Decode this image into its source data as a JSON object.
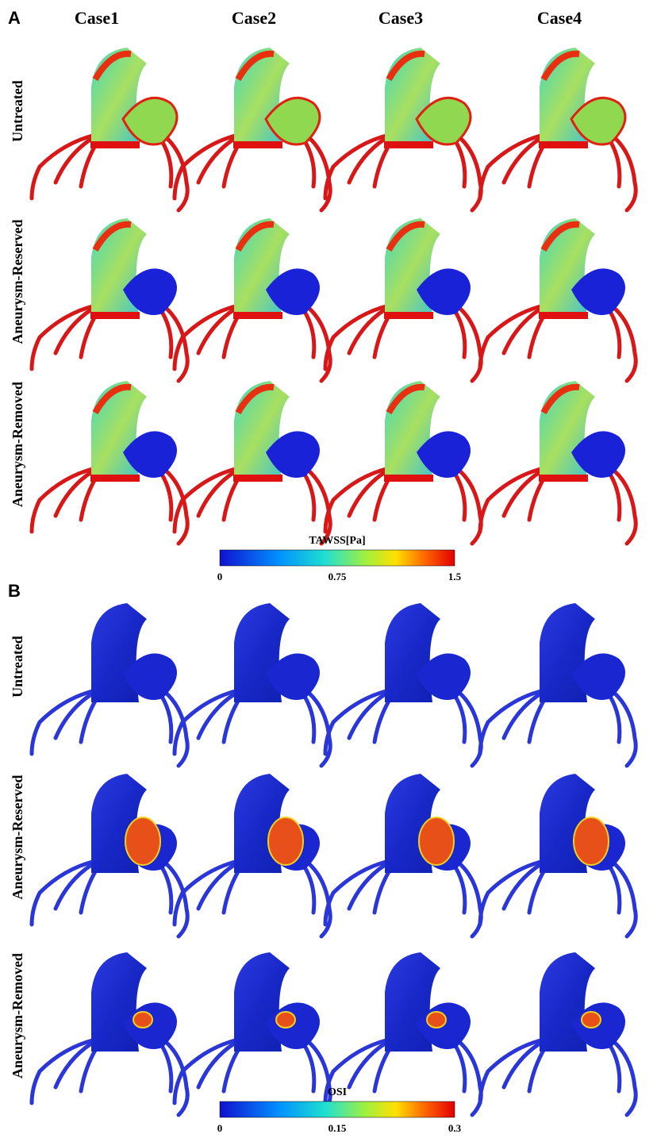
{
  "panels": [
    {
      "label": "A",
      "columns": [
        "Case1",
        "Case2",
        "Case3",
        "Case4"
      ],
      "rows": [
        "Untreated",
        "Aneurysm-Reserved",
        "Aneurysm-Removed"
      ],
      "colorbar": {
        "title": "TAWSS[Pa]",
        "ticks": [
          "0",
          "0.75",
          "1.5"
        ]
      }
    },
    {
      "label": "B",
      "rows": [
        "Untreated",
        "Aneurysm-Reserved",
        "Aneurysm-Removed"
      ],
      "colorbar": {
        "title": "OSI",
        "ticks": [
          "0",
          "0.15",
          "0.3"
        ]
      }
    }
  ]
}
